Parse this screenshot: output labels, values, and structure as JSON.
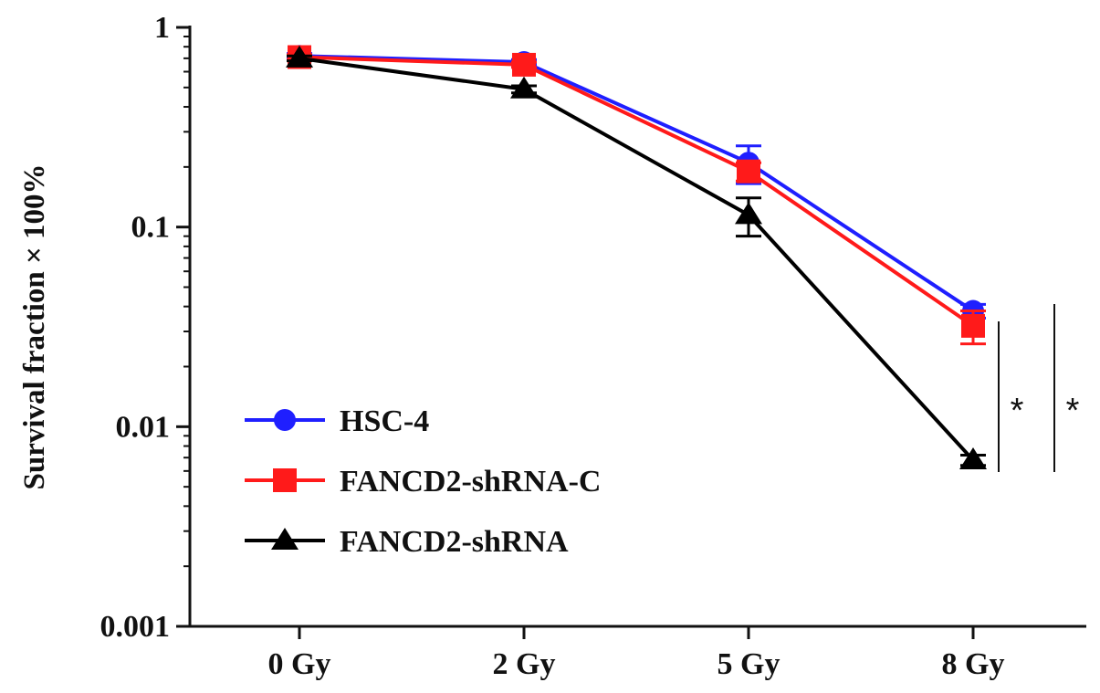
{
  "chart_data": {
    "type": "line",
    "title": "",
    "xlabel": "",
    "ylabel": "Survival fraction × 100%",
    "categories": [
      "0 Gy",
      "2 Gy",
      "5 Gy",
      "8 Gy"
    ],
    "yscale": "log",
    "ylim": [
      0.001,
      1
    ],
    "yticks": [
      {
        "value": 0.001,
        "label": "0.001"
      },
      {
        "value": 0.01,
        "label": "0.01"
      },
      {
        "value": 0.1,
        "label": "0.1"
      },
      {
        "value": 1,
        "label": "1"
      }
    ],
    "grid": false,
    "legend_position": "bottom-left",
    "series": [
      {
        "name": "HSC-4",
        "color": "#1f1fff",
        "marker": "circle",
        "values": [
          0.72,
          0.67,
          0.21,
          0.038
        ],
        "errors": [
          0.02,
          0.02,
          0.045,
          0.003
        ]
      },
      {
        "name": "FANCD2-shRNA-C",
        "color": "#ff1a1a",
        "marker": "square",
        "values": [
          0.71,
          0.65,
          0.19,
          0.032
        ],
        "errors": [
          0.02,
          0.02,
          0.02,
          0.006
        ]
      },
      {
        "name": "FANCD2-shRNA",
        "color": "#000000",
        "marker": "triangle",
        "values": [
          0.7,
          0.49,
          0.115,
          0.0068
        ],
        "errors": [
          0.02,
          0.02,
          0.025,
          0.0004
        ]
      }
    ],
    "annotations": [
      {
        "text": "*",
        "type": "significance-bracket",
        "spans": "FANCD2-shRNA-C vs FANCD2-shRNA at 8 Gy"
      },
      {
        "text": "*",
        "type": "significance-bracket",
        "spans": "HSC-4 vs FANCD2-shRNA at 8 Gy"
      }
    ]
  }
}
